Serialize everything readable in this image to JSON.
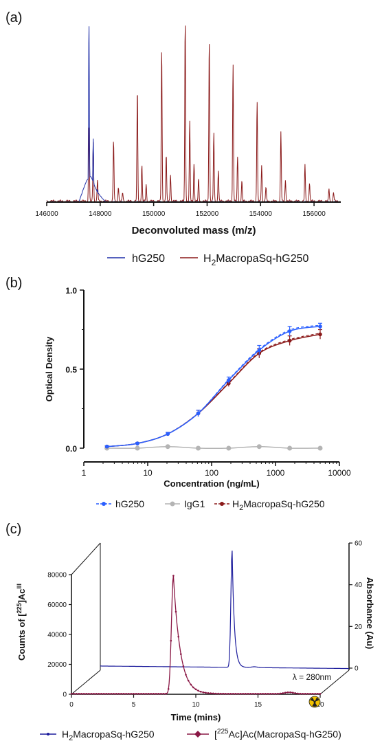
{
  "colors": {
    "blue": "#1f2fa8",
    "red": "#8b1a1a",
    "grey": "#b4b4b4",
    "lightblue": "#2a5fff",
    "maroon": "#8a1845",
    "navy": "#1c1c9c"
  },
  "panels": {
    "a": {
      "label": "(a)"
    },
    "b": {
      "label": "(b)"
    },
    "c": {
      "label": "(c)"
    }
  },
  "chart_data": [
    {
      "id": "a",
      "type": "line",
      "xlabel": "Deconvoluted mass (m/z)",
      "xlim": [
        146000,
        157000
      ],
      "x_ticks": [
        "146000",
        "148000",
        "150000",
        "152000",
        "154000",
        "156000"
      ],
      "series": [
        {
          "name": "hG250",
          "color": "blue",
          "peaks": [
            [
              147390,
              0.08
            ],
            [
              147580,
              1.0
            ],
            [
              147740,
              0.35
            ],
            [
              147900,
              0.07
            ]
          ],
          "envelope": [
            [
              147200,
              0.0
            ],
            [
              147500,
              0.12
            ],
            [
              147650,
              0.14
            ],
            [
              147900,
              0.05
            ],
            [
              148200,
              0.0
            ]
          ]
        },
        {
          "name": "H2MacropaSq-hG250",
          "color": "red",
          "peaks": [
            [
              147580,
              0.42
            ],
            [
              147740,
              0.33
            ],
            [
              147900,
              0.12
            ],
            [
              148500,
              0.34
            ],
            [
              148680,
              0.08
            ],
            [
              148840,
              0.05
            ],
            [
              149390,
              0.62
            ],
            [
              149560,
              0.2
            ],
            [
              149720,
              0.09
            ],
            [
              150300,
              0.85
            ],
            [
              150470,
              0.26
            ],
            [
              150630,
              0.15
            ],
            [
              151180,
              1.0
            ],
            [
              151350,
              0.44
            ],
            [
              151510,
              0.21
            ],
            [
              151680,
              0.12
            ],
            [
              152080,
              0.9
            ],
            [
              152250,
              0.38
            ],
            [
              152420,
              0.17
            ],
            [
              152970,
              0.76
            ],
            [
              153140,
              0.24
            ],
            [
              153300,
              0.11
            ],
            [
              153870,
              0.55
            ],
            [
              154040,
              0.2
            ],
            [
              154200,
              0.08
            ],
            [
              154760,
              0.38
            ],
            [
              154930,
              0.12
            ],
            [
              155660,
              0.2
            ],
            [
              155830,
              0.1
            ],
            [
              156560,
              0.07
            ],
            [
              156730,
              0.05
            ]
          ]
        }
      ],
      "legend": [
        {
          "text": "hG250",
          "color": "blue"
        },
        {
          "text": "H",
          "sub": "2",
          "rest": "MacropaSq-hG250",
          "color": "red"
        }
      ]
    },
    {
      "id": "b",
      "type": "scatter",
      "xlabel": "Concentration (ng/mL)",
      "ylabel": "Optical Density",
      "x_scale": "log",
      "xlim": [
        1,
        10000
      ],
      "ylim": [
        0,
        1.0
      ],
      "x_ticks": [
        "1",
        "10",
        "100",
        "1000",
        "10000"
      ],
      "y_ticks": [
        "0.0",
        "0.5",
        "1.0"
      ],
      "x": [
        2.3,
        6.9,
        20.6,
        61.7,
        185,
        556,
        1667,
        5000
      ],
      "series": [
        {
          "name": "hG250",
          "color": "lightblue",
          "values": [
            0.01,
            0.03,
            0.09,
            0.22,
            0.43,
            0.62,
            0.74,
            0.77
          ],
          "err": [
            0.005,
            0.005,
            0.01,
            0.02,
            0.02,
            0.03,
            0.03,
            0.02
          ]
        },
        {
          "name": "IgG1",
          "color": "grey",
          "values": [
            0.0,
            0.0,
            0.01,
            0.0,
            0.0,
            0.01,
            0.0,
            0.0
          ],
          "err": [
            0.0,
            0.0,
            0.0,
            0.0,
            0.0,
            0.0,
            0.0,
            0.0
          ]
        },
        {
          "name": "H2MacropaSq-hG250",
          "color": "red",
          "values": [
            0.01,
            0.03,
            0.09,
            0.22,
            0.41,
            0.6,
            0.68,
            0.72
          ],
          "err": [
            0.005,
            0.005,
            0.01,
            0.02,
            0.02,
            0.03,
            0.03,
            0.03
          ]
        }
      ],
      "legend": [
        {
          "text": "hG250",
          "color": "lightblue"
        },
        {
          "text": "IgG1",
          "color": "grey"
        },
        {
          "text": "H",
          "sub": "2",
          "rest": "MacropaSq-hG250",
          "color": "red"
        }
      ]
    },
    {
      "id": "c",
      "type": "line",
      "xlabel": "Time (mins)",
      "ylabel_left": "Counts of [225Ac]AcIII",
      "ylabel_left_parts": {
        "a": "Counts of [",
        "sup1": "225",
        "b": "]Ac",
        "sup2": "III"
      },
      "ylabel_right": "Absorbance (Au)",
      "xlim": [
        0,
        20
      ],
      "x_ticks": [
        "0",
        "5",
        "10",
        "15",
        "20"
      ],
      "y_left_ticks": [
        "0",
        "20000",
        "40000",
        "60000",
        "80000"
      ],
      "y_right_ticks": [
        "0",
        "20",
        "40",
        "60"
      ],
      "annotation": "λ = 280nm",
      "series": [
        {
          "name": "H2MacropaSq-hG250",
          "color": "navy",
          "peak_x": 10.6,
          "peak_y": 56,
          "baseline": 1.0
        },
        {
          "name": "[225Ac]Ac(MacropaSq-hG250)",
          "color": "maroon",
          "peak_x": 8.2,
          "peak_y": 79000
        }
      ],
      "legend": [
        {
          "text": "H",
          "sub": "2",
          "rest": "MacropaSq-hG250",
          "color": "navy"
        },
        {
          "pre": "[",
          "sup": "225",
          "rest": "Ac]Ac(MacropaSq-hG250)",
          "color": "maroon"
        }
      ]
    }
  ]
}
